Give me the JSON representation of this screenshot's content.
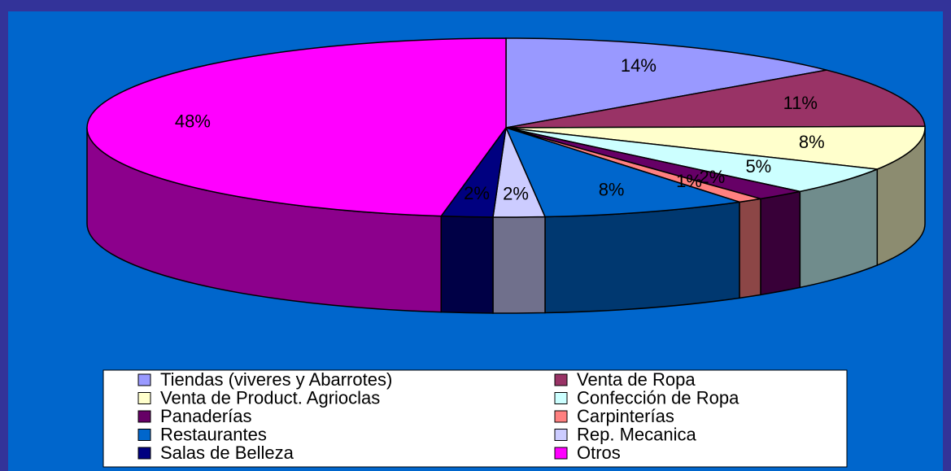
{
  "chart_data": {
    "type": "pie3d",
    "categories": [
      "Tiendas (viveres y Abarrotes)",
      "Venta de Ropa",
      "Venta de Product. Agrioclas",
      "Confección de Ropa",
      "Panaderías",
      "Carpinterías",
      "Restaurantes",
      "Rep. Mecanica",
      "Salas de Belleza",
      "Otros"
    ],
    "values": [
      14,
      11,
      8,
      5,
      2,
      1,
      8,
      2,
      2,
      48
    ],
    "value_labels": [
      "14%",
      "11%",
      "8%",
      "5%",
      "2%",
      "1%",
      "8%",
      "2%",
      "2%",
      "48%"
    ],
    "colors": [
      "#9999ff",
      "#993366",
      "#ffffcc",
      "#ccffff",
      "#660066",
      "#ff8080",
      "#0066cc",
      "#ccccff",
      "#000080",
      "#ff00ff"
    ],
    "legend": "bottom"
  }
}
